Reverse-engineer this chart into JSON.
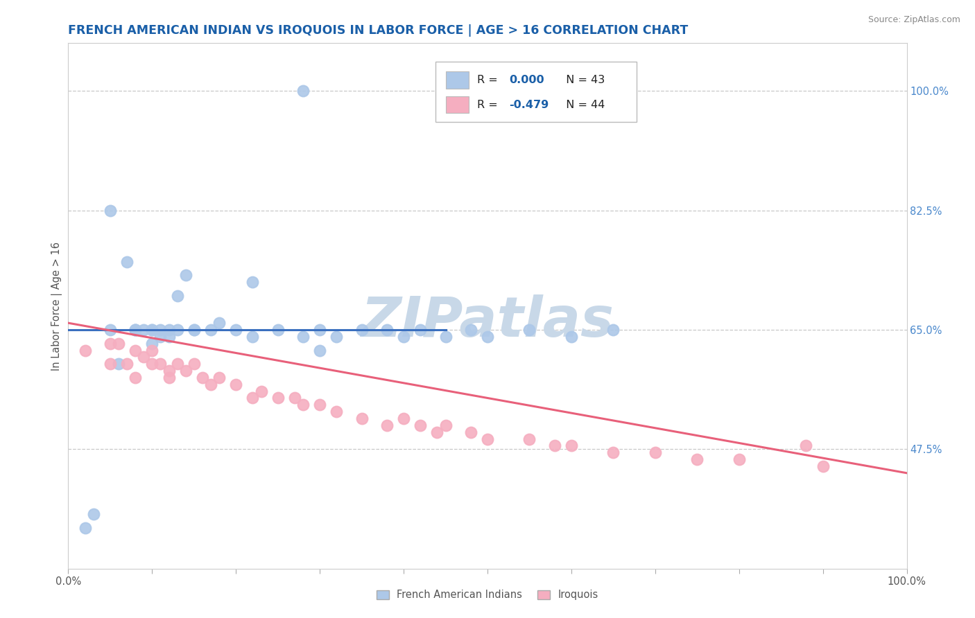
{
  "title": "FRENCH AMERICAN INDIAN VS IROQUOIS IN LABOR FORCE | AGE > 16 CORRELATION CHART",
  "source": "Source: ZipAtlas.com",
  "ylabel": "In Labor Force | Age > 16",
  "xlim": [
    0.0,
    100.0
  ],
  "ylim": [
    30.0,
    107.0
  ],
  "yticks": [
    47.5,
    65.0,
    82.5,
    100.0
  ],
  "blue_color": "#adc8e8",
  "pink_color": "#f5aec0",
  "line_blue": "#3a6fbf",
  "line_pink": "#e8607a",
  "watermark": "ZIPatlas",
  "watermark_color": "#c8d8e8",
  "background_color": "#ffffff",
  "grid_color": "#c8c8c8",
  "title_color": "#1a5fa8",
  "title_fontsize": 12.5,
  "axis_label_color": "#555555",
  "right_tick_color": "#4a88cc",
  "blue_x": [
    2,
    3,
    5,
    5,
    6,
    7,
    8,
    8,
    8,
    9,
    10,
    10,
    10,
    11,
    11,
    12,
    12,
    13,
    13,
    14,
    15,
    15,
    17,
    18,
    20,
    22,
    22,
    25,
    28,
    30,
    32,
    35,
    38,
    40,
    42,
    45,
    48,
    50,
    55,
    60,
    65,
    30,
    28
  ],
  "blue_y": [
    36,
    38,
    65,
    82.5,
    60,
    75,
    65,
    65,
    65,
    65,
    63,
    65,
    65,
    64,
    65,
    65,
    64,
    65,
    70,
    73,
    65,
    65,
    65,
    66,
    65,
    64,
    72,
    65,
    64,
    65,
    64,
    65,
    65,
    64,
    65,
    64,
    65,
    64,
    65,
    64,
    65,
    62,
    100
  ],
  "pink_x": [
    2,
    5,
    5,
    6,
    7,
    8,
    8,
    9,
    10,
    10,
    11,
    12,
    12,
    13,
    14,
    15,
    16,
    17,
    18,
    20,
    22,
    23,
    25,
    27,
    28,
    30,
    32,
    35,
    38,
    40,
    42,
    44,
    45,
    48,
    50,
    55,
    58,
    60,
    65,
    70,
    75,
    80,
    88,
    90
  ],
  "pink_y": [
    62,
    63,
    60,
    63,
    60,
    58,
    62,
    61,
    60,
    62,
    60,
    59,
    58,
    60,
    59,
    60,
    58,
    57,
    58,
    57,
    55,
    56,
    55,
    55,
    54,
    54,
    53,
    52,
    51,
    52,
    51,
    50,
    51,
    50,
    49,
    49,
    48,
    48,
    47,
    47,
    46,
    46,
    48,
    45
  ],
  "blue_line_x": [
    0,
    45
  ],
  "blue_line_y": [
    65,
    65
  ],
  "pink_line_x": [
    0,
    100
  ],
  "pink_line_y": [
    66,
    44
  ],
  "legend_r1": "R = ",
  "legend_v1": "0.000",
  "legend_n1": "  N = 43",
  "legend_r2": "R = ",
  "legend_v2": "-0.479",
  "legend_n2": "  N = 44"
}
